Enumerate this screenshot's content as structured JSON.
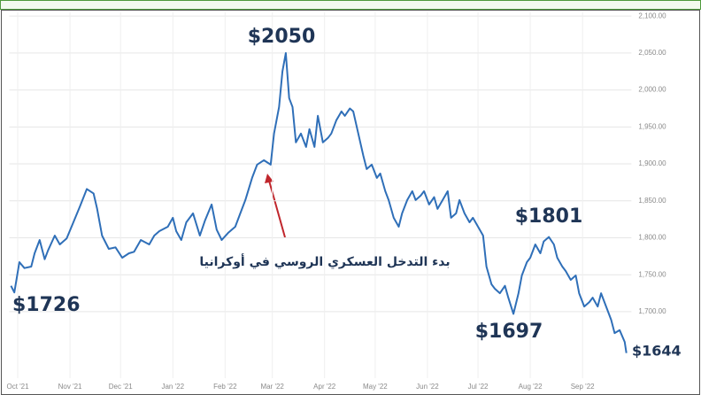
{
  "chart_data": {
    "type": "line",
    "x": [
      -4,
      -2,
      1,
      4,
      8,
      10,
      13,
      16,
      18,
      22,
      25,
      29,
      33,
      37,
      41,
      45,
      47,
      50,
      54,
      58,
      62,
      66,
      69,
      73,
      78,
      81,
      84,
      89,
      92,
      94,
      97,
      100,
      104,
      108,
      111,
      115,
      118,
      121,
      125,
      129,
      132,
      135,
      139,
      142,
      146,
      150,
      152,
      155,
      157,
      159,
      161,
      163,
      165,
      168,
      171,
      173,
      176,
      178,
      181,
      184,
      186,
      189,
      192,
      194,
      197,
      199,
      202,
      205,
      207,
      210,
      213,
      215,
      218,
      220,
      223,
      226,
      228,
      231,
      234,
      236,
      239,
      241,
      244,
      247,
      249,
      252,
      255,
      257,
      260,
      262,
      265,
      268,
      270,
      273,
      276,
      278,
      281,
      283,
      286,
      289,
      291,
      294,
      297,
      299,
      302,
      304,
      307,
      310,
      312,
      315,
      318,
      320,
      323,
      325,
      328,
      331,
      333,
      336,
      339,
      341,
      344,
      346,
      349,
      352,
      354,
      357,
      360,
      361
    ],
    "values": [
      1735,
      1726,
      1767,
      1759,
      1761,
      1779,
      1797,
      1771,
      1783,
      1803,
      1791,
      1799,
      1821,
      1843,
      1866,
      1860,
      1840,
      1803,
      1785,
      1787,
      1773,
      1779,
      1781,
      1797,
      1791,
      1803,
      1809,
      1815,
      1827,
      1809,
      1797,
      1821,
      1833,
      1803,
      1823,
      1845,
      1811,
      1797,
      1807,
      1815,
      1833,
      1851,
      1881,
      1899,
      1905,
      1899,
      1941,
      1977,
      2025,
      2050,
      1989,
      1977,
      1929,
      1941,
      1923,
      1947,
      1923,
      1965,
      1929,
      1935,
      1941,
      1959,
      1971,
      1965,
      1975,
      1971,
      1941,
      1911,
      1893,
      1899,
      1881,
      1887,
      1863,
      1851,
      1827,
      1815,
      1833,
      1851,
      1863,
      1851,
      1857,
      1863,
      1845,
      1855,
      1839,
      1851,
      1863,
      1827,
      1833,
      1851,
      1833,
      1821,
      1827,
      1815,
      1803,
      1761,
      1737,
      1731,
      1725,
      1735,
      1719,
      1697,
      1725,
      1749,
      1767,
      1773,
      1791,
      1779,
      1795,
      1801,
      1791,
      1773,
      1761,
      1755,
      1743,
      1749,
      1725,
      1707,
      1713,
      1719,
      1707,
      1725,
      1707,
      1689,
      1671,
      1675,
      1659,
      1644
    ],
    "color": "#2f6fb8",
    "xlim": [
      -5,
      364
    ],
    "xticks": [
      {
        "value": 0,
        "label": "Oct '21"
      },
      {
        "value": 31,
        "label": "Nov '21"
      },
      {
        "value": 61,
        "label": "Dec '21"
      },
      {
        "value": 92,
        "label": "Jan '22"
      },
      {
        "value": 123,
        "label": "Feb '22"
      },
      {
        "value": 151,
        "label": "Mar '22"
      },
      {
        "value": 182,
        "label": "Apr '22"
      },
      {
        "value": 212,
        "label": "May '22"
      },
      {
        "value": 243,
        "label": "Jun '22"
      },
      {
        "value": 273,
        "label": "Jul '22"
      },
      {
        "value": 304,
        "label": "Aug '22"
      },
      {
        "value": 335,
        "label": "Sep '22"
      }
    ],
    "ylim": [
      1610,
      2105
    ],
    "yticks": [
      {
        "value": 1700,
        "label": "1,700.00"
      },
      {
        "value": 1750,
        "label": "1,750.00"
      },
      {
        "value": 1800,
        "label": "1,800.00"
      },
      {
        "value": 1850,
        "label": "1,850.00"
      },
      {
        "value": 1900,
        "label": "1,900.00"
      },
      {
        "value": 1950,
        "label": "1,950.00"
      },
      {
        "value": 2000,
        "label": "2,000.00"
      },
      {
        "value": 2050,
        "label": "2,050.00"
      },
      {
        "value": 2100,
        "label": "2,100.00"
      }
    ],
    "grid": true,
    "annotations": [
      "$2050",
      "$1726",
      "$1801",
      "$1697",
      "$1644",
      "بدء التدخل العسكري الروسي في أوكرانيا"
    ]
  }
}
